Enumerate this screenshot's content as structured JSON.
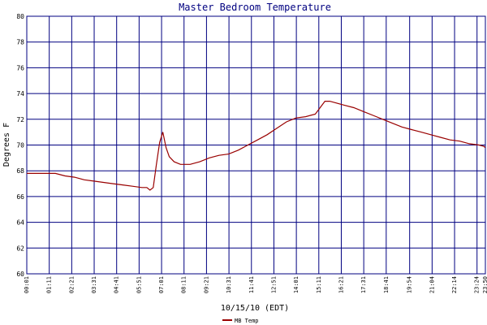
{
  "chart_data": {
    "type": "line",
    "title": "Master Bedroom Temperature",
    "xlabel": "10/15/10 (EDT)",
    "ylabel": "Degrees F",
    "ylim": [
      60,
      80
    ],
    "yticks": [
      60,
      62,
      64,
      66,
      68,
      70,
      72,
      74,
      76,
      78,
      80
    ],
    "xlim": [
      "00:01",
      "23:50"
    ],
    "xticks": [
      "00:01",
      "01:11",
      "02:21",
      "03:31",
      "04:41",
      "05:51",
      "07:01",
      "08:11",
      "09:21",
      "10:31",
      "11:41",
      "12:51",
      "14:01",
      "15:11",
      "16:21",
      "17:31",
      "18:41",
      "19:54",
      "21:04",
      "22:14",
      "23:24",
      "23:50"
    ],
    "grid": true,
    "legend_position": "bottom-left",
    "colors": {
      "plot_bg": "#ffffff",
      "grid": "#000080",
      "line": "#990000",
      "title": "#000080"
    },
    "series": [
      {
        "name": "MB Temp",
        "x": [
          "00:01",
          "00:30",
          "01:00",
          "01:30",
          "02:00",
          "02:30",
          "03:00",
          "03:30",
          "04:00",
          "04:30",
          "05:00",
          "05:30",
          "06:00",
          "06:15",
          "06:25",
          "06:35",
          "06:45",
          "06:55",
          "07:05",
          "07:15",
          "07:25",
          "07:40",
          "08:00",
          "08:30",
          "09:00",
          "09:30",
          "10:00",
          "10:30",
          "11:00",
          "11:30",
          "12:00",
          "12:30",
          "13:00",
          "13:30",
          "14:00",
          "14:30",
          "14:45",
          "15:00",
          "15:15",
          "15:30",
          "15:45",
          "16:00",
          "16:30",
          "17:00",
          "17:30",
          "18:00",
          "18:30",
          "19:00",
          "19:30",
          "20:00",
          "20:30",
          "21:00",
          "21:30",
          "22:00",
          "22:30",
          "23:00",
          "23:30",
          "23:45",
          "23:50"
        ],
        "values": [
          67.8,
          67.8,
          67.8,
          67.8,
          67.6,
          67.5,
          67.3,
          67.2,
          67.1,
          67.0,
          66.9,
          66.8,
          66.7,
          66.7,
          66.5,
          66.7,
          68.5,
          70.2,
          71.0,
          69.8,
          69.1,
          68.7,
          68.5,
          68.5,
          68.7,
          69.0,
          69.2,
          69.3,
          69.6,
          70.0,
          70.4,
          70.8,
          71.3,
          71.8,
          72.1,
          72.2,
          72.3,
          72.4,
          72.9,
          73.4,
          73.4,
          73.3,
          73.1,
          72.9,
          72.6,
          72.3,
          72.0,
          71.7,
          71.4,
          71.2,
          71.0,
          70.8,
          70.6,
          70.4,
          70.3,
          70.1,
          70.0,
          69.9,
          69.8
        ]
      }
    ]
  }
}
